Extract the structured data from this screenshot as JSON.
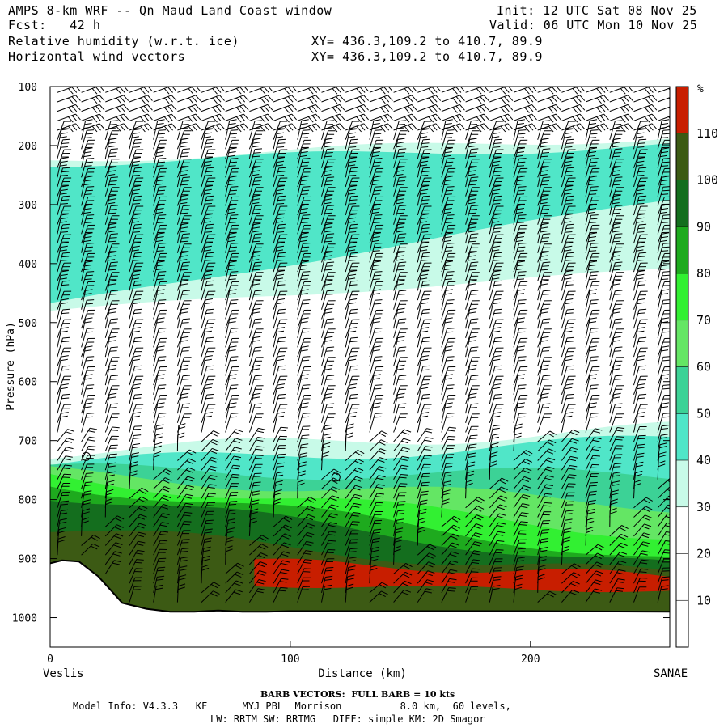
{
  "header": {
    "line1_left": "AMPS 8-km WRF -- Qn Maud Land Coast window",
    "line2_left": "Fcst:   42 h",
    "line3_left": "Relative humidity (w.r.t. ice)",
    "line4_left": "Horizontal wind vectors",
    "line1_right": "Init: 12 UTC Sat 08 Nov 25",
    "line2_right": "Valid: 06 UTC Mon 10 Nov 25",
    "line3_mid": "XY= 436.3,109.2 to 410.7, 89.9",
    "line4_mid": "XY= 436.3,109.2 to 410.7, 89.9"
  },
  "footer": {
    "barb_note": "BARB VECTORS:  FULL BARB = 10 kts",
    "model_info_1": "Model Info: V4.3.3   KF      MYJ PBL  Morrison          8.0 km,  60 levels,",
    "model_info_2": "LW: RRTM SW: RRTMG   DIFF: simple KM: 2D Smagor"
  },
  "colors": {
    "rh_0_30": "#ffffff",
    "rh_30_40": "#c8fae8",
    "rh_40_50": "#50e6c8",
    "rh_50_60": "#3cd296",
    "rh_60_70": "#64e664",
    "rh_70_80": "#32f032",
    "rh_80_90": "#1eaa1e",
    "rh_90_100": "#146e1e",
    "rh_100_110": "#3c5a14",
    "rh_gt_110": "#c81e00"
  },
  "chart_data": {
    "type": "heatmap",
    "title": "Relative humidity (w.r.t. ice)",
    "overlay": "Horizontal wind vectors",
    "xlabel": "Distance (km)",
    "ylabel": "Pressure (hPa)",
    "xlim": [
      0,
      258
    ],
    "ylim_hpa": [
      100,
      1050
    ],
    "y_inverted": true,
    "x_ticks": [
      "0",
      "100",
      "200"
    ],
    "x_tick_values": [
      0,
      100,
      200
    ],
    "y_ticks": [
      "100",
      "200",
      "300",
      "400",
      "500",
      "600",
      "700",
      "800",
      "900",
      "1000"
    ],
    "y_tick_values": [
      100,
      200,
      300,
      400,
      500,
      600,
      700,
      800,
      900,
      1000
    ],
    "x_endpoint_labels": [
      "Veslis",
      "SANAE"
    ],
    "colorbar": {
      "unit": "%",
      "tick_labels": [
        "10",
        "20",
        "30",
        "40",
        "50",
        "60",
        "70",
        "80",
        "90",
        "100",
        "110"
      ],
      "tick_values": [
        10,
        20,
        30,
        40,
        50,
        60,
        70,
        80,
        90,
        100,
        110
      ],
      "levels": [
        0,
        10,
        20,
        30,
        40,
        50,
        60,
        70,
        80,
        90,
        100,
        110,
        120
      ]
    },
    "bands": [
      {
        "level": "rh_30_40",
        "x": [
          0,
          258
        ],
        "upper_hpa": [
          225,
          185
        ],
        "lower_hpa": [
          480,
          410
        ]
      },
      {
        "level": "rh_40_50",
        "x": [
          0,
          258
        ],
        "upper_hpa": [
          230,
          200
        ],
        "lower_hpa": [
          470,
          290
        ]
      },
      {
        "level": "rh_30_40",
        "x": [
          0,
          258
        ],
        "upper_hpa": [
          720,
          680
        ],
        "lower_hpa": [
          1000,
          1000
        ]
      },
      {
        "level": "rh_40_50",
        "x": [
          0,
          258
        ],
        "upper_hpa": [
          740,
          700
        ],
        "lower_hpa": [
          1000,
          1000
        ]
      },
      {
        "level": "rh_50_60",
        "x": [
          0,
          258
        ],
        "upper_hpa": [
          750,
          760
        ],
        "lower_hpa": [
          1000,
          1000
        ]
      },
      {
        "level": "rh_60_70",
        "x": [
          0,
          258
        ],
        "upper_hpa": [
          755,
          810
        ],
        "lower_hpa": [
          1000,
          1000
        ]
      },
      {
        "level": "rh_70_80",
        "x": [
          0,
          258
        ],
        "upper_hpa": [
          760,
          860
        ],
        "lower_hpa": [
          1000,
          1000
        ]
      },
      {
        "level": "rh_80_90",
        "x": [
          0,
          258
        ],
        "upper_hpa": [
          770,
          900
        ],
        "lower_hpa": [
          1000,
          1000
        ]
      },
      {
        "level": "rh_90_100",
        "x": [
          0,
          258
        ],
        "upper_hpa": [
          790,
          915
        ],
        "lower_hpa": [
          1000,
          1000
        ]
      },
      {
        "level": "rh_100_110",
        "x": [
          0,
          258
        ],
        "upper_hpa": [
          850,
          930
        ],
        "lower_hpa": [
          1000,
          1000
        ]
      },
      {
        "level": "rh_gt_110",
        "x": [
          85,
          258
        ],
        "upper_hpa": [
          905,
          930
        ],
        "lower_hpa": [
          945,
          955
        ]
      }
    ],
    "terrain_surface_hpa": [
      {
        "x": 0,
        "p": 908
      },
      {
        "x": 5,
        "p": 903
      },
      {
        "x": 12,
        "p": 905
      },
      {
        "x": 20,
        "p": 930
      },
      {
        "x": 30,
        "p": 975
      },
      {
        "x": 40,
        "p": 985
      },
      {
        "x": 50,
        "p": 990
      },
      {
        "x": 60,
        "p": 990
      },
      {
        "x": 70,
        "p": 988
      },
      {
        "x": 80,
        "p": 990
      },
      {
        "x": 90,
        "p": 990
      },
      {
        "x": 100,
        "p": 989
      },
      {
        "x": 150,
        "p": 989
      },
      {
        "x": 200,
        "p": 989
      },
      {
        "x": 258,
        "p": 990
      }
    ],
    "calm_markers": [
      {
        "x": 15,
        "p": 727
      },
      {
        "x": 119,
        "p": 762
      }
    ]
  }
}
